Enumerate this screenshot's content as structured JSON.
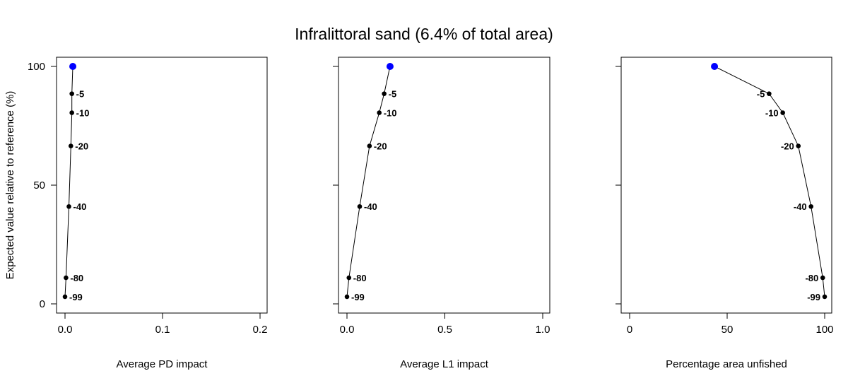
{
  "title": "Infralittoral sand (6.4% of total area)",
  "colors": {
    "line": "#000000",
    "point": "#000000",
    "highlight": "#0000ff"
  },
  "chart_data": [
    {
      "type": "line",
      "xlabel": "Average PD impact",
      "ylabel": "Expected value relative to reference (%)",
      "xlim": [
        0,
        0.2
      ],
      "ylim": [
        0,
        100
      ],
      "x_ticks": [
        "0.0",
        "0.1",
        "0.2"
      ],
      "x_tick_values": [
        0,
        0.1,
        0.2
      ],
      "y_ticks": [
        "0",
        "50",
        "100"
      ],
      "y_tick_values": [
        0,
        50,
        100
      ],
      "points": [
        {
          "label": "",
          "x": 0.008,
          "y": 100,
          "highlight": true
        },
        {
          "label": "-5",
          "x": 0.007,
          "y": 88.5
        },
        {
          "label": "-10",
          "x": 0.007,
          "y": 80.5
        },
        {
          "label": "-20",
          "x": 0.006,
          "y": 66.5
        },
        {
          "label": "-40",
          "x": 0.004,
          "y": 41
        },
        {
          "label": "-80",
          "x": 0.001,
          "y": 11
        },
        {
          "label": "-99",
          "x": 0.0,
          "y": 3
        }
      ]
    },
    {
      "type": "line",
      "xlabel": "Average L1 impact",
      "ylabel": "",
      "xlim": [
        0,
        1.0
      ],
      "ylim": [
        0,
        100
      ],
      "x_ticks": [
        "0.0",
        "0.5",
        "1.0"
      ],
      "x_tick_values": [
        0,
        0.5,
        1.0
      ],
      "y_ticks": [],
      "y_tick_values": [
        0,
        50,
        100
      ],
      "points": [
        {
          "label": "",
          "x": 0.22,
          "y": 100,
          "highlight": true
        },
        {
          "label": "-5",
          "x": 0.19,
          "y": 88.5
        },
        {
          "label": "-10",
          "x": 0.165,
          "y": 80.5
        },
        {
          "label": "-20",
          "x": 0.115,
          "y": 66.5
        },
        {
          "label": "-40",
          "x": 0.065,
          "y": 41
        },
        {
          "label": "-80",
          "x": 0.01,
          "y": 11
        },
        {
          "label": "-99",
          "x": 0.0,
          "y": 3
        }
      ]
    },
    {
      "type": "line",
      "xlabel": "Percentage area unfished",
      "ylabel": "",
      "xlim": [
        0,
        100
      ],
      "ylim": [
        0,
        100
      ],
      "x_ticks": [
        "0",
        "50",
        "100"
      ],
      "x_tick_values": [
        0,
        50,
        100
      ],
      "y_ticks": [],
      "y_tick_values": [
        0,
        50,
        100
      ],
      "points": [
        {
          "label": "",
          "x": 43.5,
          "y": 100,
          "highlight": true
        },
        {
          "label": "-5",
          "x": 71.5,
          "y": 88.5
        },
        {
          "label": "-10",
          "x": 78.5,
          "y": 80.5
        },
        {
          "label": "-20",
          "x": 86.5,
          "y": 66.5
        },
        {
          "label": "-40",
          "x": 93,
          "y": 41
        },
        {
          "label": "-80",
          "x": 99,
          "y": 11
        },
        {
          "label": "-99",
          "x": 100,
          "y": 3
        }
      ]
    }
  ]
}
